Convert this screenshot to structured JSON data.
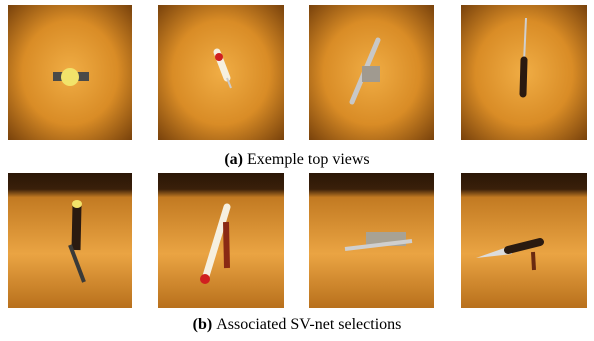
{
  "figure": {
    "subfigures": [
      {
        "label": "(a)",
        "caption": "Exemple top views"
      },
      {
        "label": "(b)",
        "caption": "Associated SV-net selections"
      }
    ]
  }
}
